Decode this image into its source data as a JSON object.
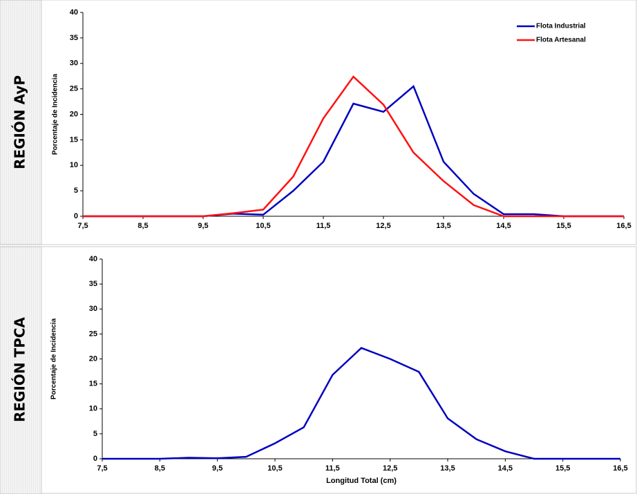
{
  "chart_data": [
    {
      "type": "line",
      "region_label": "REGIÓN AyP",
      "y_label": "Porcentaje de Incidencia",
      "x": [
        7.5,
        8,
        8.5,
        9,
        9.5,
        10,
        10.5,
        11,
        11.5,
        12,
        12.5,
        13,
        13.5,
        14,
        14.5,
        15,
        15.5,
        16,
        16.5
      ],
      "series": [
        {
          "name": "Flota Industrial",
          "color": "#0000c0",
          "values": [
            0,
            0,
            0,
            0,
            0,
            0.5,
            0.3,
            5,
            10.7,
            22.1,
            20.5,
            25.5,
            10.7,
            4.4,
            0.4,
            0.4,
            0,
            0,
            0
          ]
        },
        {
          "name": "Flota Artesanal",
          "color": "#ff1010",
          "values": [
            0,
            0,
            0,
            0,
            0,
            0.6,
            1.3,
            7.8,
            19.2,
            27.4,
            21.9,
            12.5,
            6.9,
            2.2,
            0,
            0,
            0,
            0,
            0
          ]
        }
      ],
      "xlim": [
        7.5,
        16.5
      ],
      "xticks": [
        {
          "value": 7.5,
          "label": "7,5"
        },
        {
          "value": 8.5,
          "label": "8,5"
        },
        {
          "value": 9.5,
          "label": "9,5"
        },
        {
          "value": 10.5,
          "label": "10,5"
        },
        {
          "value": 11.5,
          "label": "11,5"
        },
        {
          "value": 12.5,
          "label": "12,5"
        },
        {
          "value": 13.5,
          "label": "13,5"
        },
        {
          "value": 14.5,
          "label": "14,5"
        },
        {
          "value": 15.5,
          "label": "15,5"
        },
        {
          "value": 16.5,
          "label": "16,5"
        }
      ],
      "ylim": [
        0,
        40
      ],
      "yticks": [
        0,
        5,
        10,
        15,
        20,
        25,
        30,
        35,
        40
      ],
      "legend": "upper right"
    },
    {
      "type": "line",
      "region_label": "REGIÓN TPCA",
      "y_label": "Porcentaje de Incidencia",
      "x_label": "Longitud Total (cm)",
      "x": [
        7.5,
        8,
        8.5,
        9,
        9.5,
        10,
        10.5,
        11,
        11.5,
        12,
        12.5,
        13,
        13.5,
        14,
        14.5,
        15,
        15.5,
        16,
        16.5
      ],
      "series": [
        {
          "color": "#0000c0",
          "values": [
            0,
            0,
            0,
            0.2,
            0.1,
            0.4,
            3.1,
            6.3,
            16.8,
            22.2,
            20,
            17.4,
            8.1,
            3.9,
            1.5,
            0,
            0,
            0,
            0
          ]
        }
      ],
      "xlim": [
        7.5,
        16.5
      ],
      "xticks": [
        {
          "value": 7.5,
          "label": "7,5"
        },
        {
          "value": 8.5,
          "label": "8,5"
        },
        {
          "value": 9.5,
          "label": "9,5"
        },
        {
          "value": 10.5,
          "label": "10,5"
        },
        {
          "value": 11.5,
          "label": "11,5"
        },
        {
          "value": 12.5,
          "label": "12,5"
        },
        {
          "value": 13.5,
          "label": "13,5"
        },
        {
          "value": 14.5,
          "label": "14,5"
        },
        {
          "value": 15.5,
          "label": "15,5"
        },
        {
          "value": 16.5,
          "label": "16,5"
        }
      ],
      "ylim": [
        0,
        40
      ],
      "yticks": [
        0,
        5,
        10,
        15,
        20,
        25,
        30,
        35,
        40
      ]
    }
  ]
}
